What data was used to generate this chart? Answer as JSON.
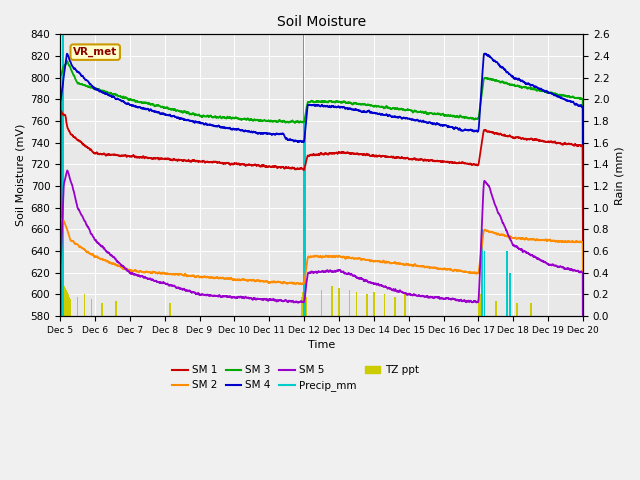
{
  "title": "Soil Moisture",
  "xlabel": "Time",
  "ylabel_left": "Soil Moisture (mV)",
  "ylabel_right": "Rain (mm)",
  "ylim_left": [
    580,
    840
  ],
  "ylim_right": [
    0.0,
    2.6
  ],
  "yticks_left": [
    580,
    600,
    620,
    640,
    660,
    680,
    700,
    720,
    740,
    760,
    780,
    800,
    820,
    840
  ],
  "yticks_right": [
    0.0,
    0.2,
    0.4,
    0.6,
    0.8,
    1.0,
    1.2,
    1.4,
    1.6,
    1.8,
    2.0,
    2.2,
    2.4,
    2.6
  ],
  "xtick_days": [
    5,
    6,
    7,
    8,
    9,
    10,
    11,
    12,
    13,
    14,
    15,
    16,
    17,
    18,
    19,
    20
  ],
  "xtick_labels": [
    "Dec 5",
    "Dec 6",
    "Dec 7",
    "Dec 8",
    "Dec 9",
    "Dec 10",
    "Dec 11",
    "Dec 12",
    "Dec 13",
    "Dec 14",
    "Dec 15",
    "Dec 16",
    "Dec 17",
    "Dec 18",
    "Dec 19",
    "Dec 20"
  ],
  "sm1_color": "#cc0000",
  "sm2_color": "#ff8c00",
  "sm3_color": "#00aa00",
  "sm4_color": "#0000cc",
  "sm5_color": "#9900cc",
  "precip_color": "#00cccc",
  "tz_color": "#cccc00",
  "vr_met_box_facecolor": "#ffffcc",
  "vr_met_box_edgecolor": "#cc9900",
  "vr_met_text_color": "#8B0000",
  "background_color": "#e8e8e8",
  "grid_color": "#ffffff",
  "fig_facecolor": "#f0f0f0"
}
